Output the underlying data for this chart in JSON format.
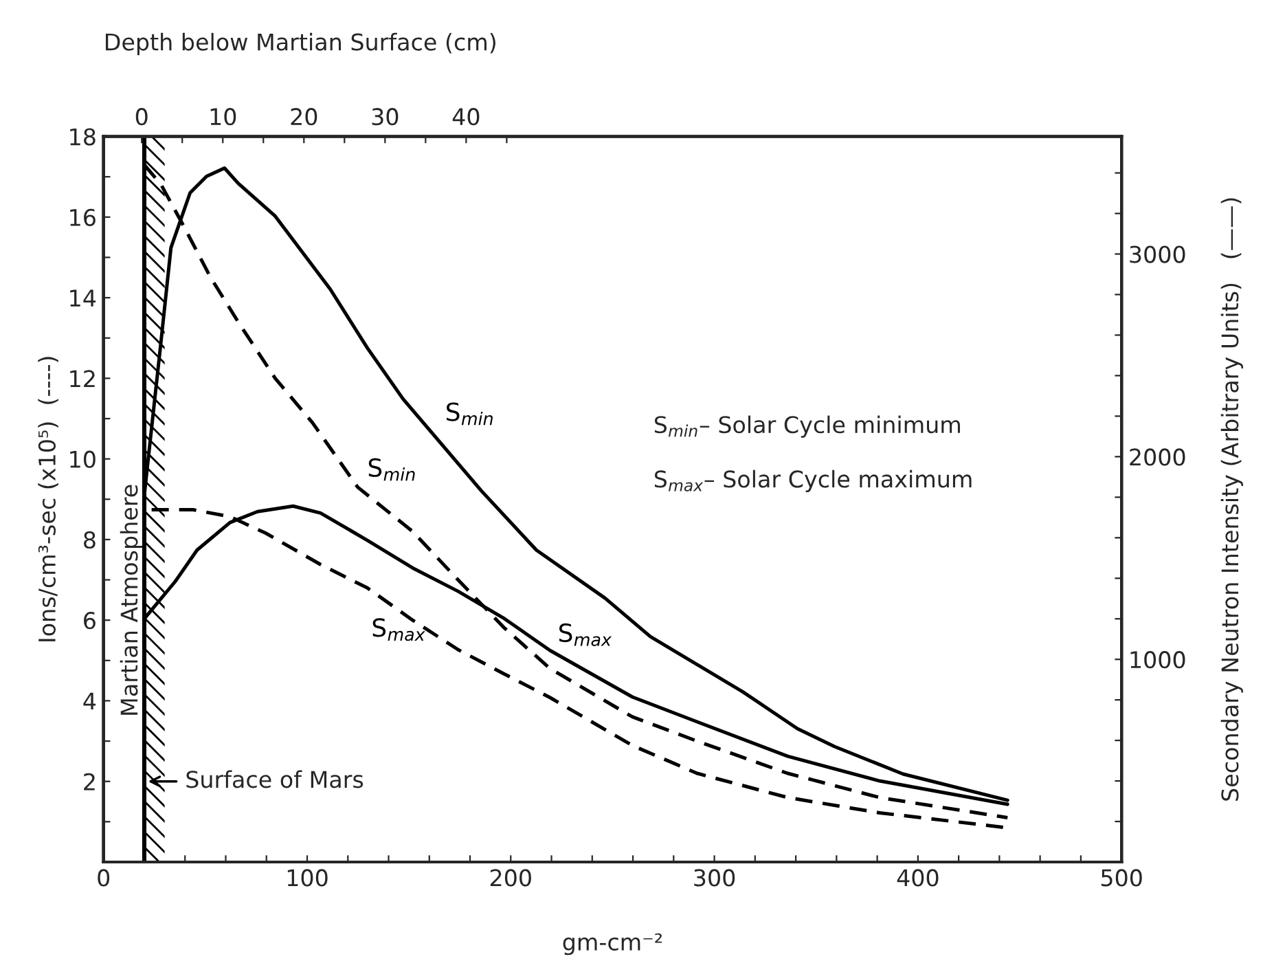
{
  "chart_data": {
    "type": "line",
    "xlabel": "gm-cm⁻²",
    "ylabel": "Ions/cm³-sec (x10⁵)  (----)",
    "y2label": "Secondary Neutron Intensity (Arbitrary Units)   (——)",
    "x2label": "Depth below Martian Surface (cm)",
    "xlim": [
      0,
      500
    ],
    "xticks": [
      0,
      {
        "value": 20,
        "label": null
      },
      {
        "value": 40,
        "label": null
      },
      {
        "value": 60,
        "label": null
      },
      {
        "value": 80,
        "label": null
      },
      100,
      {
        "value": 120,
        "label": null
      },
      {
        "value": 140,
        "label": null
      },
      {
        "value": 160,
        "label": null
      },
      {
        "value": 180,
        "label": null
      },
      200,
      {
        "value": 220,
        "label": null
      },
      {
        "value": 240,
        "label": null
      },
      {
        "value": 260,
        "label": null
      },
      {
        "value": 280,
        "label": null
      },
      300,
      {
        "value": 320,
        "label": null
      },
      {
        "value": 340,
        "label": null
      },
      {
        "value": 360,
        "label": null
      },
      {
        "value": 380,
        "label": null
      },
      400,
      {
        "value": 420,
        "label": null
      },
      {
        "value": 440,
        "label": null
      },
      {
        "value": 460,
        "label": null
      },
      {
        "value": 480,
        "label": null
      },
      500
    ],
    "ylim": [
      0,
      18
    ],
    "yticks": [
      {
        "value": 1,
        "label": null
      },
      2,
      {
        "value": 3,
        "label": null
      },
      4,
      {
        "value": 5,
        "label": null
      },
      6,
      {
        "value": 7,
        "label": null
      },
      8,
      {
        "value": 9,
        "label": null
      },
      10,
      {
        "value": 11,
        "label": null
      },
      12,
      {
        "value": 13,
        "label": null
      },
      14,
      {
        "value": 15,
        "label": null
      },
      16,
      {
        "value": 17,
        "label": null
      },
      18
    ],
    "y2lim": [
      0,
      3580
    ],
    "y2ticks": [
      {
        "value": 200,
        "label": null
      },
      {
        "value": 400,
        "label": null
      },
      {
        "value": 600,
        "label": null
      },
      {
        "value": 800,
        "label": null
      },
      1000,
      {
        "value": 1200,
        "label": null
      },
      {
        "value": 1400,
        "label": null
      },
      {
        "value": 1600,
        "label": null
      },
      {
        "value": 1800,
        "label": null
      },
      2000,
      {
        "value": 2200,
        "label": null
      },
      {
        "value": 2400,
        "label": null
      },
      {
        "value": 2600,
        "label": null
      },
      {
        "value": 2800,
        "label": null
      },
      3000,
      {
        "value": 3200,
        "label": null
      },
      {
        "value": 3400,
        "label": null
      }
    ],
    "x2lim": [
      -4.7,
      120.8
    ],
    "x2ticks": [
      0,
      {
        "value": 5,
        "label": null
      },
      10,
      {
        "value": 15,
        "label": null
      },
      20,
      {
        "value": 25,
        "label": null
      },
      30,
      {
        "value": 35,
        "label": null
      },
      40,
      {
        "value": 45,
        "label": null
      }
    ],
    "grid": false,
    "legend": false,
    "series": [
      {
        "name": "S$_{min}$",
        "color": "#000000",
        "line_style": "solid",
        "axis": "y2",
        "x": [
          20,
          28.3,
          33.1,
          42.5,
          50.6,
          59.4,
          66.1,
          84.3,
          111.3,
          129.6,
          147.1,
          185.6,
          212.6,
          246.3,
          268.6,
          313.8,
          340.8,
          359,
          392.7,
          444
        ],
        "values": [
          1810,
          2576,
          3031,
          3302,
          3383,
          3424,
          3349,
          3187,
          2827,
          2536,
          2285,
          1831,
          1539,
          1302,
          1112,
          841,
          658,
          570,
          434,
          305
        ]
      },
      {
        "name": "S$_{max}$",
        "color": "#000000",
        "line_style": "solid",
        "axis": "y2",
        "x": [
          20,
          35.1,
          45.9,
          62.1,
          75.6,
          93.1,
          106.6,
          129.6,
          151.8,
          174.1,
          197,
          219.3,
          259.8,
          291.5,
          336,
          381.2,
          444
        ],
        "values": [
          1200,
          1383,
          1539,
          1675,
          1729,
          1756,
          1722,
          1587,
          1451,
          1336,
          1200,
          1044,
          814,
          692,
          522,
          400,
          285
        ]
      },
      {
        "name": "S$_{min}$",
        "color": "#000000",
        "line_style": "dashed",
        "x": [
          20,
          28.3,
          39.1,
          52.6,
          66.1,
          84.3,
          102.6,
          124.8,
          151.8,
          174.1,
          197,
          219.3,
          259.8,
          291.5,
          336,
          381.2,
          444
        ],
        "values": [
          17.3,
          16.8,
          15.8,
          14.5,
          13.4,
          12.0,
          10.9,
          9.3,
          8.2,
          7.0,
          5.8,
          4.8,
          3.6,
          3.0,
          2.2,
          1.6,
          1.1
        ]
      },
      {
        "name": "S$_{max}$",
        "color": "#000000",
        "line_style": "dashed",
        "x": [
          23.6,
          43.9,
          62,
          79.6,
          106.6,
          129.6,
          151.8,
          174.1,
          197,
          219.3,
          259.8,
          291.5,
          336,
          381.2,
          444
        ],
        "values": [
          8.74,
          8.74,
          8.57,
          8.16,
          7.38,
          6.8,
          6.0,
          5.27,
          4.66,
          4.08,
          2.89,
          2.2,
          1.6,
          1.22,
          0.85
        ]
      }
    ],
    "ref_lines": [
      {
        "axis": "x",
        "value": 20,
        "label": "Surface of Mars"
      }
    ],
    "bands": [
      {
        "axis": "x",
        "from": 20,
        "to": 30,
        "label": null
      }
    ],
    "annotations": [
      "S$_{min}$– Solar Cycle minimum",
      "S$_{max}$– Solar Cycle maximum",
      "Martian Atmosphere"
    ]
  }
}
